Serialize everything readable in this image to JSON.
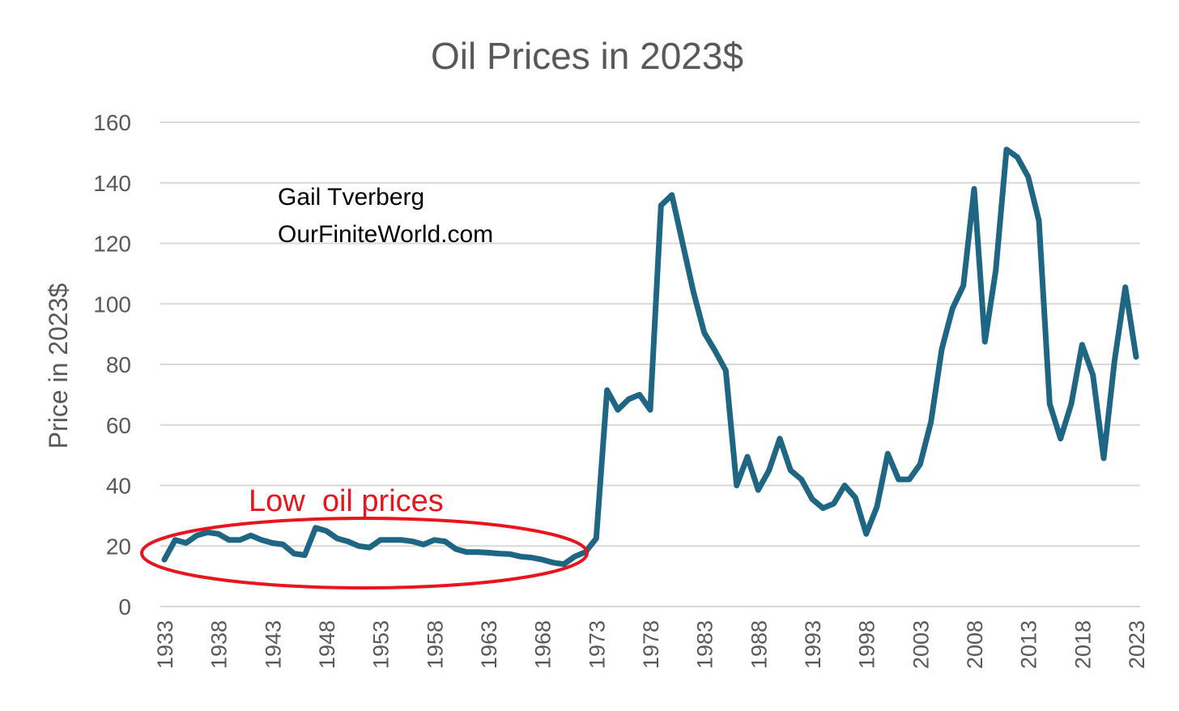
{
  "chart_data": {
    "type": "line",
    "title": "Oil Prices in 2023$",
    "xlabel": "",
    "ylabel": "Price in 2023$",
    "ylim": [
      0,
      160
    ],
    "yticks": [
      0,
      20,
      40,
      60,
      80,
      100,
      120,
      140,
      160
    ],
    "xlim": [
      1933,
      2023
    ],
    "xticks": [
      1933,
      1938,
      1943,
      1948,
      1953,
      1958,
      1963,
      1968,
      1973,
      1978,
      1983,
      1988,
      1993,
      1998,
      2003,
      2008,
      2013,
      2018,
      2023
    ],
    "grid": true,
    "legend": "none",
    "line_color": "#1f6584",
    "series": [
      {
        "x": [
          1933,
          1934,
          1935,
          1936,
          1937,
          1938,
          1939,
          1940,
          1941,
          1942,
          1943,
          1944,
          1945,
          1946,
          1947,
          1948,
          1949,
          1950,
          1951,
          1952,
          1953,
          1954,
          1955,
          1956,
          1957,
          1958,
          1959,
          1960,
          1961,
          1962,
          1963,
          1964,
          1965,
          1966,
          1967,
          1968,
          1969,
          1970,
          1971,
          1972,
          1973,
          1974,
          1975,
          1976,
          1977,
          1978,
          1979,
          1980,
          1981,
          1982,
          1983,
          1984,
          1985,
          1986,
          1987,
          1988,
          1989,
          1990,
          1991,
          1992,
          1993,
          1994,
          1995,
          1996,
          1997,
          1998,
          1999,
          2000,
          2001,
          2002,
          2003,
          2004,
          2005,
          2006,
          2007,
          2008,
          2009,
          2010,
          2011,
          2012,
          2013,
          2014,
          2015,
          2016,
          2017,
          2018,
          2019,
          2020,
          2021,
          2022,
          2023
        ],
        "values": [
          15.5,
          22,
          21,
          23.5,
          24.5,
          24,
          22,
          22,
          23.5,
          22,
          21,
          20.5,
          17.5,
          17,
          26,
          25,
          22.5,
          21.5,
          20,
          19.5,
          22,
          22,
          22,
          21.5,
          20.5,
          22,
          21.5,
          19,
          18,
          18,
          17.8,
          17.5,
          17.3,
          16.5,
          16.2,
          15.5,
          14.5,
          14,
          16.5,
          18,
          22.5,
          71.5,
          65,
          68.5,
          70,
          65,
          132.5,
          136,
          120,
          104,
          90.5,
          84.5,
          78,
          40,
          49.5,
          38.5,
          45,
          55.5,
          45,
          42,
          35.5,
          32.5,
          34,
          40,
          36,
          24,
          33,
          50.5,
          42,
          42,
          47,
          61,
          85,
          98.5,
          106,
          138,
          87.5,
          111,
          151,
          148.5,
          142,
          127.5,
          67,
          55.5,
          67,
          86.5,
          76.5,
          49,
          81,
          105.5,
          82.5
        ]
      }
    ],
    "annotations": {
      "credit_name": "Gail Tverberg",
      "credit_site": "OurFiniteWorld.com",
      "highlight_label": "Low  oil prices",
      "highlight_color": "#e8141e"
    }
  }
}
